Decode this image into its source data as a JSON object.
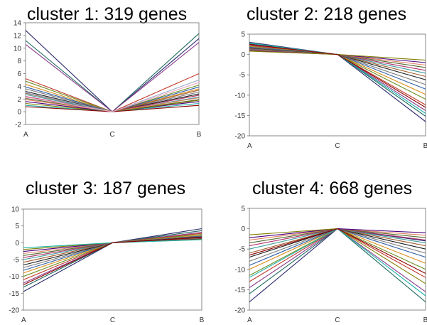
{
  "chart_data": [
    {
      "type": "line",
      "title": "cluster 1: 319 genes",
      "categories": [
        "A",
        "C",
        "B"
      ],
      "ylim": [
        -2,
        14
      ],
      "yticks": [
        -2,
        0,
        2,
        4,
        6,
        8,
        10,
        12,
        14
      ],
      "grid": false,
      "legend": "none",
      "series": [
        {
          "values": [
            12.8,
            0,
            11.5
          ]
        },
        {
          "values": [
            11.2,
            0,
            12.3
          ]
        },
        {
          "values": [
            10.6,
            0,
            10.9
          ]
        },
        {
          "values": [
            5.2,
            0,
            6.0
          ]
        },
        {
          "values": [
            4.8,
            0,
            4.2
          ]
        },
        {
          "values": [
            4.3,
            0,
            3.6
          ]
        },
        {
          "values": [
            3.9,
            0,
            3.9
          ]
        },
        {
          "values": [
            3.6,
            0,
            3.1
          ]
        },
        {
          "values": [
            3.2,
            0,
            2.8
          ]
        },
        {
          "values": [
            2.9,
            0,
            3.4
          ]
        },
        {
          "values": [
            2.7,
            0,
            2.3
          ]
        },
        {
          "values": [
            2.4,
            0,
            2.6
          ]
        },
        {
          "values": [
            2.1,
            0,
            1.9
          ]
        },
        {
          "values": [
            1.9,
            0,
            2.2
          ]
        },
        {
          "values": [
            1.6,
            0,
            1.6
          ]
        },
        {
          "values": [
            1.3,
            0,
            1.8
          ]
        },
        {
          "values": [
            1.0,
            0,
            1.3
          ]
        },
        {
          "values": [
            0.8,
            0,
            1.0
          ]
        },
        {
          "values": [
            3.0,
            0,
            5.0
          ]
        },
        {
          "values": [
            2.3,
            0,
            4.6
          ]
        }
      ]
    },
    {
      "type": "line",
      "title": "cluster 2: 218 genes",
      "categories": [
        "A",
        "C",
        "B"
      ],
      "ylim": [
        -20,
        5
      ],
      "yticks": [
        -20,
        -15,
        -10,
        -5,
        0,
        5
      ],
      "grid": false,
      "legend": "none",
      "series": [
        {
          "values": [
            3.0,
            0,
            -16.5
          ]
        },
        {
          "values": [
            2.6,
            0,
            -15.2
          ]
        },
        {
          "values": [
            2.4,
            0,
            -13.8
          ]
        },
        {
          "values": [
            2.2,
            0,
            -12.4
          ]
        },
        {
          "values": [
            2.0,
            0,
            -11.0
          ]
        },
        {
          "values": [
            1.9,
            0,
            -9.8
          ]
        },
        {
          "values": [
            1.8,
            0,
            -8.5
          ]
        },
        {
          "values": [
            1.6,
            0,
            -7.4
          ]
        },
        {
          "values": [
            1.5,
            0,
            -6.2
          ]
        },
        {
          "values": [
            1.4,
            0,
            -5.4
          ]
        },
        {
          "values": [
            1.3,
            0,
            -4.6
          ]
        },
        {
          "values": [
            1.2,
            0,
            -3.9
          ]
        },
        {
          "values": [
            1.1,
            0,
            -3.2
          ]
        },
        {
          "values": [
            1.0,
            0,
            -2.6
          ]
        },
        {
          "values": [
            0.9,
            0,
            -2.0
          ]
        },
        {
          "values": [
            0.8,
            0,
            -1.4
          ]
        },
        {
          "values": [
            2.8,
            0,
            -14.5
          ]
        },
        {
          "values": [
            2.5,
            0,
            -13.0
          ]
        }
      ]
    },
    {
      "type": "line",
      "title": "cluster 3: 187 genes",
      "categories": [
        "A",
        "C",
        "B"
      ],
      "ylim": [
        -20,
        10
      ],
      "yticks": [
        -20,
        -15,
        -10,
        -5,
        0,
        5,
        10
      ],
      "grid": false,
      "legend": "none",
      "series": [
        {
          "values": [
            -14.5,
            0,
            4.2
          ]
        },
        {
          "values": [
            -13.2,
            0,
            3.6
          ]
        },
        {
          "values": [
            -12.0,
            0,
            3.1
          ]
        },
        {
          "values": [
            -11.0,
            0,
            2.8
          ]
        },
        {
          "values": [
            -10.0,
            0,
            2.5
          ]
        },
        {
          "values": [
            -9.0,
            0,
            2.2
          ]
        },
        {
          "values": [
            -8.2,
            0,
            2.0
          ]
        },
        {
          "values": [
            -7.4,
            0,
            1.8
          ]
        },
        {
          "values": [
            -6.6,
            0,
            1.7
          ]
        },
        {
          "values": [
            -5.8,
            0,
            1.6
          ]
        },
        {
          "values": [
            -5.0,
            0,
            1.5
          ]
        },
        {
          "values": [
            -4.4,
            0,
            1.4
          ]
        },
        {
          "values": [
            -3.8,
            0,
            1.3
          ]
        },
        {
          "values": [
            -3.2,
            0,
            1.2
          ]
        },
        {
          "values": [
            -2.6,
            0,
            1.1
          ]
        },
        {
          "values": [
            -2.0,
            0,
            1.0
          ]
        },
        {
          "values": [
            -1.5,
            0,
            0.9
          ]
        },
        {
          "values": [
            -12.5,
            0,
            1.6
          ]
        }
      ]
    },
    {
      "type": "line",
      "title": "cluster 4: 668 genes",
      "categories": [
        "A",
        "C",
        "B"
      ],
      "ylim": [
        -20,
        5
      ],
      "yticks": [
        -20,
        -15,
        -10,
        -5,
        0,
        5
      ],
      "grid": false,
      "legend": "none",
      "series": [
        {
          "values": [
            -18.0,
            0,
            -3.0
          ]
        },
        {
          "values": [
            -16.0,
            0,
            -18.0
          ]
        },
        {
          "values": [
            -14.5,
            0,
            -15.5
          ]
        },
        {
          "values": [
            -13.0,
            0,
            -12.0
          ]
        },
        {
          "values": [
            -11.5,
            0,
            -10.0
          ]
        },
        {
          "values": [
            -10.0,
            0,
            -8.5
          ]
        },
        {
          "values": [
            -9.0,
            0,
            -7.0
          ]
        },
        {
          "values": [
            -8.0,
            0,
            -6.0
          ]
        },
        {
          "values": [
            -7.0,
            0,
            -5.0
          ]
        },
        {
          "values": [
            -6.0,
            0,
            -4.2
          ]
        },
        {
          "values": [
            -5.0,
            0,
            -3.5
          ]
        },
        {
          "values": [
            -4.2,
            0,
            -2.8
          ]
        },
        {
          "values": [
            -3.5,
            0,
            -2.2
          ]
        },
        {
          "values": [
            -2.8,
            0,
            -1.6
          ]
        },
        {
          "values": [
            -2.2,
            0,
            -1.0
          ]
        },
        {
          "values": [
            -1.5,
            0,
            -13.5
          ]
        },
        {
          "values": [
            -12.0,
            0,
            -16.5
          ]
        },
        {
          "values": [
            -6.5,
            0,
            -11.0
          ]
        }
      ]
    }
  ],
  "palette": [
    "#2b2b6e",
    "#1f6b5e",
    "#8a3a8c",
    "#c0392b",
    "#6b8e23",
    "#d98c1a",
    "#2f5fa8",
    "#7a7a7a",
    "#1a1a1a",
    "#a05a2c",
    "#3c9c9c",
    "#b0306a",
    "#556b2f",
    "#e08060",
    "#4b0082",
    "#808000",
    "#20b2aa",
    "#8b0000",
    "#9aa8c8",
    "#f0a8c0"
  ]
}
